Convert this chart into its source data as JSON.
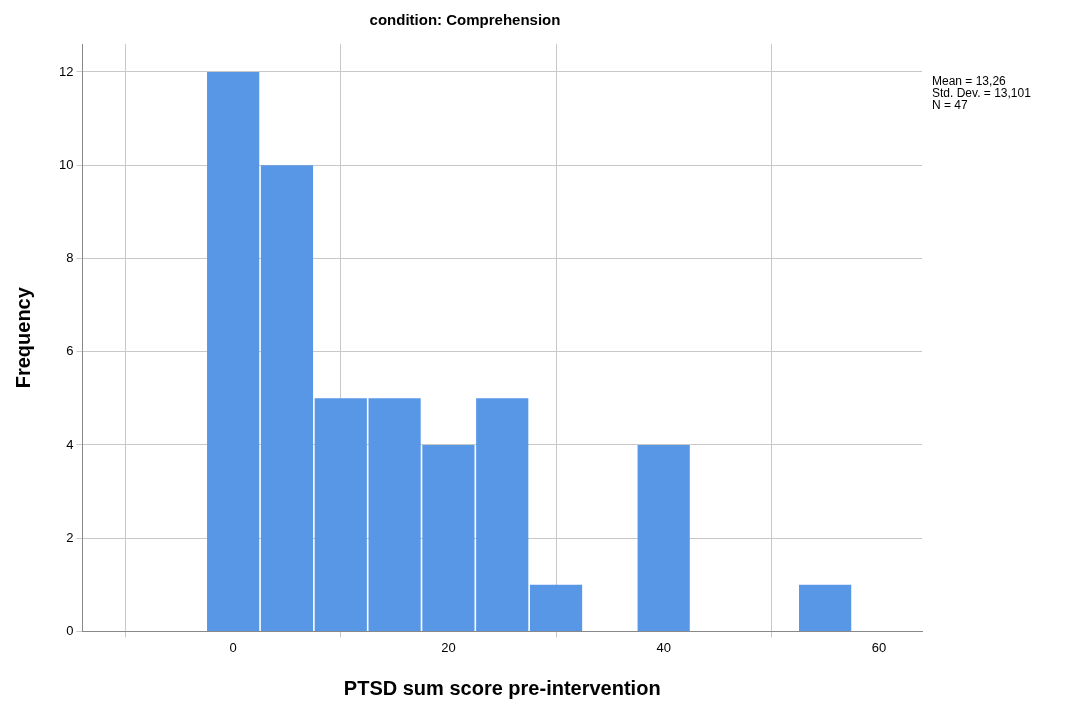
{
  "chart_data": {
    "type": "histogram",
    "title": "condition: Comprehension",
    "xlabel": "PTSD sum score pre-intervention",
    "ylabel": "Frequency",
    "bins": [
      -2.5,
      2.5,
      7.5,
      12.5,
      17.5,
      22.5,
      27.5,
      32.5,
      37.5,
      42.5,
      47.5,
      52.5,
      57.5
    ],
    "values": [
      12,
      10,
      5,
      5,
      4,
      5,
      1,
      0,
      4,
      0,
      0,
      1
    ],
    "color": "#5797e6",
    "xlim": [
      -14,
      64
    ],
    "xticks": [
      0,
      20,
      40,
      60
    ],
    "ylim": [
      0,
      12.6
    ],
    "yticks": [
      0,
      2,
      4,
      6,
      8,
      10,
      12
    ],
    "grid": true,
    "legend": false,
    "annotations": [
      "Mean = 13,26",
      "Std. Dev. = 13,101",
      "N = 47"
    ]
  }
}
